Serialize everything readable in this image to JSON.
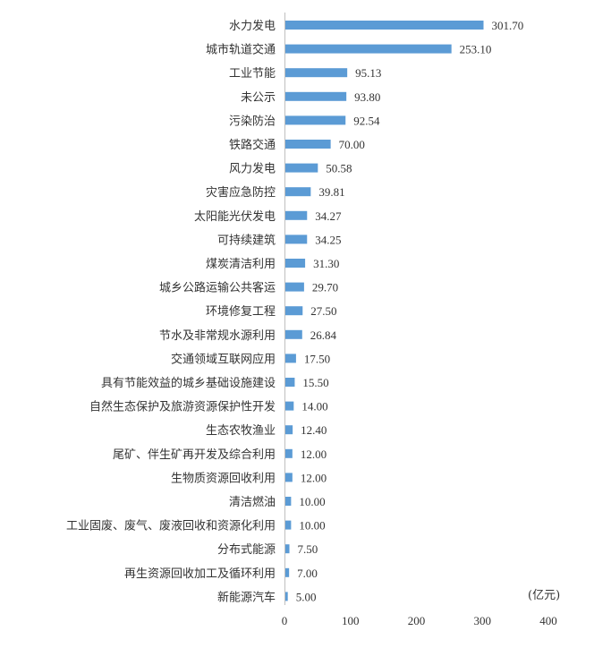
{
  "chart_data": {
    "type": "bar",
    "orientation": "horizontal",
    "title": "",
    "unit_label": "(亿元)",
    "xlabel": "",
    "ylabel": "",
    "xlim": [
      0,
      400
    ],
    "x_ticks": [
      0,
      100,
      200,
      300,
      400
    ],
    "grid": false,
    "legend": "none",
    "bar_color": "#5b9bd5",
    "axis_color": "#bfbfbf",
    "text_color": "#333333",
    "categories": [
      "水力发电",
      "城市轨道交通",
      "工业节能",
      "未公示",
      "污染防治",
      "铁路交通",
      "风力发电",
      "灾害应急防控",
      "太阳能光伏发电",
      "可持续建筑",
      "煤炭清洁利用",
      "城乡公路运输公共客运",
      "环境修复工程",
      "节水及非常规水源利用",
      "交通领域互联网应用",
      "具有节能效益的城乡基础设施建设",
      "自然生态保护及旅游资源保护性开发",
      "生态农牧渔业",
      "尾矿、伴生矿再开发及综合利用",
      "生物质资源回收利用",
      "清洁燃油",
      "工业固废、废气、废液回收和资源化利用",
      "分布式能源",
      "再生资源回收加工及循环利用",
      "新能源汽车"
    ],
    "values": [
      301.7,
      253.1,
      95.13,
      93.8,
      92.54,
      70.0,
      50.58,
      39.81,
      34.27,
      34.25,
      31.3,
      29.7,
      27.5,
      26.84,
      17.5,
      15.5,
      14.0,
      12.4,
      12.0,
      12.0,
      10.0,
      10.0,
      7.5,
      7.0,
      5.0
    ],
    "value_labels": [
      "301.70",
      "253.10",
      "95.13",
      "93.80",
      "92.54",
      "70.00",
      "50.58",
      "39.81",
      "34.27",
      "34.25",
      "31.30",
      "29.70",
      "27.50",
      "26.84",
      "17.50",
      "15.50",
      "14.00",
      "12.40",
      "12.00",
      "12.00",
      "10.00",
      "10.00",
      "7.50",
      "7.00",
      "5.00"
    ]
  }
}
